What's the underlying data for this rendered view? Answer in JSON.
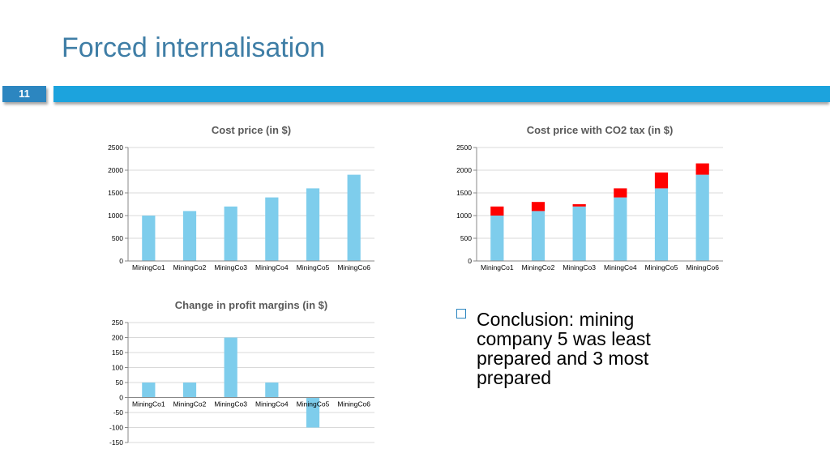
{
  "slide": {
    "title": "Forced internalisation",
    "number": "11",
    "colors": {
      "title": "#3f7ea6",
      "banner": "#1ca3dd",
      "number_box": "#2c86c0"
    }
  },
  "conclusion": {
    "text": "Conclusion: mining company 5 was least prepared and 3 most prepared"
  },
  "chart_data": [
    {
      "type": "bar",
      "title": "Cost price (in $)",
      "categories": [
        "MiningCo1",
        "MiningCo2",
        "MiningCo3",
        "MiningCo4",
        "MiningCo5",
        "MiningCo6"
      ],
      "series": [
        {
          "values": [
            1000,
            1100,
            1200,
            1400,
            1600,
            1900
          ],
          "color": "#7ecdec"
        }
      ],
      "ylim": [
        0,
        2500
      ],
      "yticks": [
        0,
        500,
        1000,
        1500,
        2000,
        2500
      ],
      "grid": true
    },
    {
      "type": "bar",
      "stacked": true,
      "title": "Cost price with CO2 tax (in $)",
      "categories": [
        "MiningCo1",
        "MiningCo2",
        "MiningCo3",
        "MiningCo4",
        "MiningCo5",
        "MiningCo6"
      ],
      "series": [
        {
          "values": [
            1000,
            1100,
            1200,
            1400,
            1600,
            1900
          ],
          "color": "#7ecdec"
        },
        {
          "values": [
            200,
            200,
            50,
            200,
            350,
            250
          ],
          "color": "#ff0000"
        }
      ],
      "ylim": [
        0,
        2500
      ],
      "yticks": [
        0,
        500,
        1000,
        1500,
        2000,
        2500
      ],
      "grid": true
    },
    {
      "type": "bar",
      "title": "Change in profit margins (in $)",
      "categories": [
        "MiningCo1",
        "MiningCo2",
        "MiningCo3",
        "MiningCo4",
        "MiningCo5",
        "MiningCo6"
      ],
      "series": [
        {
          "values": [
            50,
            50,
            200,
            50,
            -100,
            0
          ],
          "color": "#7ecdec"
        }
      ],
      "ylim": [
        -150,
        250
      ],
      "yticks": [
        -150,
        -100,
        -50,
        0,
        50,
        100,
        150,
        200,
        250
      ],
      "grid": true
    }
  ]
}
